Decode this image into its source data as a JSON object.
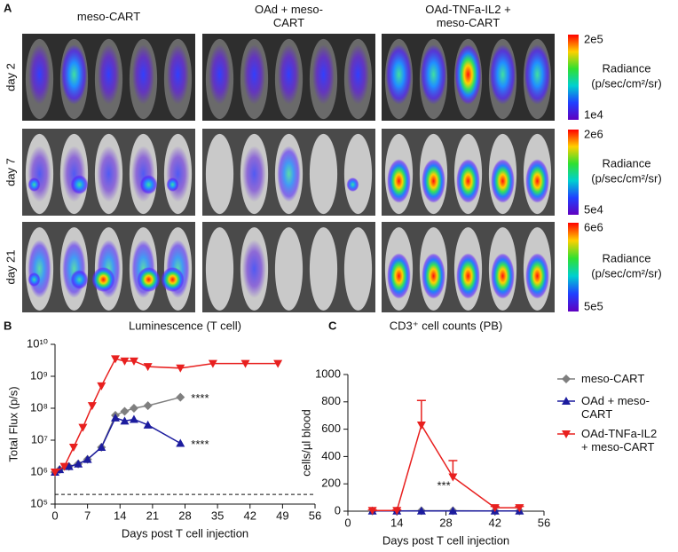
{
  "panel_a": {
    "label": "A",
    "groups": [
      "meso-CART",
      "OAd + meso-CART",
      "OAd-TNFa-IL2 + meso-CART"
    ],
    "rows": [
      {
        "day": "day 2",
        "scale_max": "2e5",
        "scale_min": "1e4",
        "scale_title": "Radiance",
        "scale_unit": "(p/sec/cm²/sr)"
      },
      {
        "day": "day 7",
        "scale_max": "2e6",
        "scale_min": "5e4",
        "scale_title": "Radiance",
        "scale_unit": "(p/sec/cm²/sr)"
      },
      {
        "day": "day 21",
        "scale_max": "6e6",
        "scale_min": "5e5",
        "scale_title": "Radiance",
        "scale_unit": "(p/sec/cm²/sr)"
      }
    ]
  },
  "chart_data": [
    {
      "type": "line",
      "panel": "B",
      "title": "Luminescence (T cell)",
      "x_label": "Days post T cell injection",
      "y_label": "Total Flux (p/s)",
      "log_y": true,
      "xlim": [
        0,
        56
      ],
      "xticks": [
        0,
        7,
        14,
        21,
        28,
        35,
        42,
        49,
        56
      ],
      "ylim": [
        100000,
        10000000000
      ],
      "yticks": [
        {
          "value": 100000,
          "label": "10⁵"
        },
        {
          "value": 1000000,
          "label": "10⁶"
        },
        {
          "value": 10000000,
          "label": "10⁷"
        },
        {
          "value": 100000000,
          "label": "10⁸"
        },
        {
          "value": 1000000000,
          "label": "10⁹"
        },
        {
          "value": 10000000000,
          "label": "10¹⁰"
        }
      ],
      "hline": 200000,
      "annotations": [
        "****",
        "****"
      ],
      "series": [
        {
          "color": "#7f7f7f",
          "marker": "diamond",
          "x": [
            0,
            1,
            3,
            5,
            7,
            10,
            13,
            15,
            17,
            20,
            27
          ],
          "values": [
            1000000,
            1200000,
            1500000,
            1800000,
            2500000,
            6000000,
            60000000,
            80000000,
            100000000,
            120000000,
            220000000
          ]
        },
        {
          "color": "#1c1c9e",
          "marker": "triangle-up",
          "x": [
            0,
            1,
            3,
            5,
            7,
            10,
            13,
            15,
            17,
            20,
            27
          ],
          "values": [
            1000000,
            1200000,
            1500000,
            1800000,
            2500000,
            6000000,
            50000000,
            40000000,
            45000000,
            30000000,
            8000000
          ]
        },
        {
          "color": "#e8201f",
          "marker": "triangle-down",
          "x": [
            0,
            2,
            4,
            6,
            8,
            10,
            13,
            15,
            17,
            20,
            27,
            34,
            41,
            48
          ],
          "values": [
            1000000,
            1500000,
            6000000,
            25000000,
            120000000,
            500000000,
            3500000000,
            3000000000,
            3000000000,
            2000000000,
            1800000000,
            2500000000,
            2500000000,
            2500000000
          ]
        }
      ]
    },
    {
      "type": "line",
      "panel": "C",
      "title": "CD3⁺ cell counts (PB)",
      "x_label": "Days post T cell injection",
      "y_label": "cells/µl blood",
      "xlim": [
        0,
        56
      ],
      "xticks": [
        0,
        14,
        28,
        42,
        56
      ],
      "ylim": [
        0,
        1000
      ],
      "yticks": [
        0,
        200,
        400,
        600,
        800,
        1000
      ],
      "annotations": [
        "***"
      ],
      "legend": "right",
      "series": [
        {
          "name": "meso-CART",
          "color": "#7f7f7f",
          "marker": "diamond",
          "x": [
            7,
            14,
            21,
            30,
            42,
            49
          ],
          "values": [
            2,
            2,
            3,
            3,
            2,
            2
          ]
        },
        {
          "name": "OAd + meso-CART",
          "color": "#1c1c9e",
          "marker": "triangle-up",
          "x": [
            7,
            14,
            21,
            30,
            42,
            49
          ],
          "values": [
            2,
            2,
            2,
            2,
            2,
            2
          ]
        },
        {
          "name": "OAd-TNFa-IL2 + meso-CART",
          "color": "#e8201f",
          "marker": "triangle-down",
          "x": [
            7,
            14,
            21,
            30,
            42,
            49
          ],
          "values": [
            5,
            5,
            630,
            250,
            25,
            25
          ],
          "errors": [
            5,
            5,
            180,
            120,
            10,
            10
          ]
        }
      ]
    }
  ]
}
